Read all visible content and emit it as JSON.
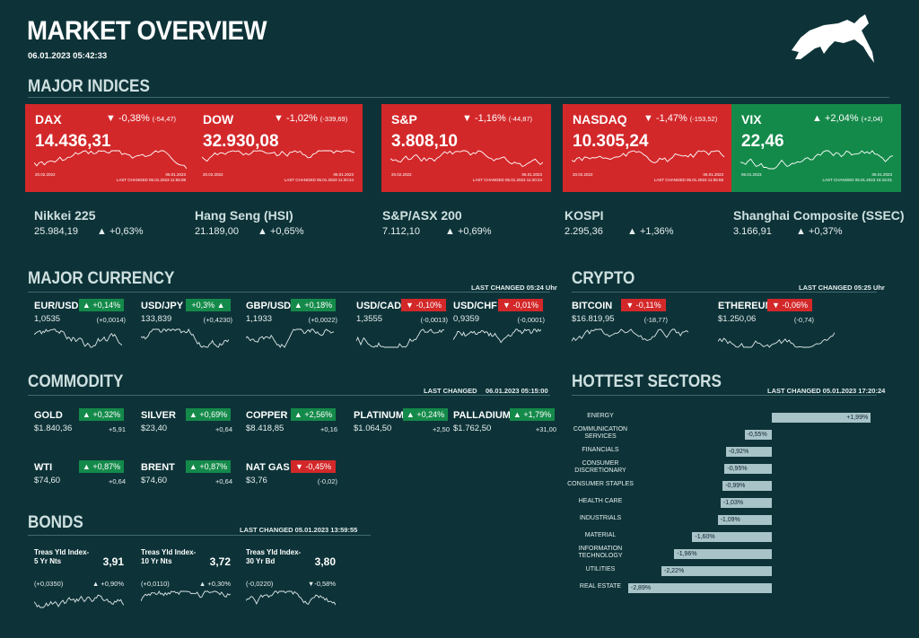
{
  "header": {
    "title": "MARKET OVERVIEW",
    "timestamp": "06.01.2023 05:42:33"
  },
  "sections": {
    "indices": "MAJOR INDICES",
    "currency": "MAJOR CURRENCY",
    "currency_changed": "LAST CHANGED 05:24 Uhr",
    "crypto": "CRYPTO",
    "crypto_changed": "LAST CHANGED 05:25 Uhr",
    "commodity": "COMMODITY",
    "commodity_changed_label": "LAST CHANGED",
    "commodity_changed_time": "06.01.2023 05:15:00",
    "sectors": "HOTTEST SECTORS",
    "sectors_changed": "LAST CHANGED 05.01.2023 17:20:24",
    "bonds": "BONDS",
    "bonds_changed": "LAST CHANGED 05.01.2023 13:59:55"
  },
  "cards": [
    {
      "name": "DAX",
      "change": "▼ -0,38%",
      "abs": "(-54,47)",
      "value": "14.436,31",
      "start": "20.02.2022",
      "end": "06.01.2023",
      "changed": "LAST CHANGED 05.01.2023 11:55:08",
      "color": "#d3282a"
    },
    {
      "name": "DOW",
      "change": "▼ -1,02%",
      "abs": "(-339,69)",
      "value": "32.930,08",
      "start": "20.02.2022",
      "end": "06.01.2023",
      "changed": "LAST CHANGED 05.01.2023 11:20:24",
      "color": "#d3282a"
    },
    {
      "name": "S&P",
      "change": "▼ -1,16%",
      "abs": "(-44,87)",
      "value": "3.808,10",
      "start": "20.02.2022",
      "end": "06.01.2023",
      "changed": "LAST CHANGED 05.01.2023 11:20:24",
      "color": "#d3282a"
    },
    {
      "name": "NASDAQ",
      "change": "▼ -1,47%",
      "abs": "(-153,52)",
      "value": "10.305,24",
      "start": "20.02.2022",
      "end": "06.01.2023",
      "changed": "LAST CHANGED 05.01.2023 11:55:58",
      "color": "#d3282a"
    },
    {
      "name": "VIX",
      "change": "▲ +2,04%",
      "abs": "(+2,04)",
      "value": "22,46",
      "start": "06.01.2023",
      "end": "06.01.2023",
      "changed": "LAST CHANGED 05.01.2023 15:15:01",
      "color": "#148a4a"
    }
  ],
  "indices": [
    {
      "name": "Nikkei 225",
      "value": "25.984,19",
      "change": "▲ +0,63%"
    },
    {
      "name": "Hang Seng (HSI)",
      "value": "21.189,00",
      "change": "▲ +0,65%"
    },
    {
      "name": "S&P/ASX 200",
      "value": "7.112,10",
      "change": "▲ +0,69%"
    },
    {
      "name": "KOSPI",
      "value": "2.295,36",
      "change": "▲ +1,36%"
    },
    {
      "name": "Shanghai Composite (SSEC)",
      "value": "3.166,91",
      "change": "▲ +0,37%"
    }
  ],
  "currencies": [
    {
      "sym": "EUR/USD",
      "badge": "▲ +0,14%",
      "price": "1,0535",
      "abs": "(+0,0014)",
      "up": true
    },
    {
      "sym": "USD/JPY",
      "badge": "+0,3% ▲",
      "price": "133,839",
      "abs": "(+0,4230)",
      "up": true
    },
    {
      "sym": "GBP/USD",
      "badge": "▲ +0,18%",
      "price": "1,1933",
      "abs": "(+0,0022)",
      "up": true
    },
    {
      "sym": "USD/CAD",
      "badge": "▼ -0,10%",
      "price": "1,3555",
      "abs": "(-0,0013)",
      "up": false
    },
    {
      "sym": "USD/CHF",
      "badge": "▼ -0,01%",
      "price": "0,9359",
      "abs": "(-0,0001)",
      "up": false
    }
  ],
  "crypto": [
    {
      "sym": "BITCOIN",
      "badge": "▼ -0,11%",
      "price": "$16.819,95",
      "abs": "(-18,77)",
      "up": false
    },
    {
      "sym": "ETHEREUM",
      "badge": "▼ -0,06%",
      "price": "$1.250,06",
      "abs": "(-0,74)",
      "up": false
    }
  ],
  "commodities": [
    {
      "sym": "GOLD",
      "badge": "▲ +0,32%",
      "price": "$1.840,36",
      "abs": "+5,91",
      "up": true
    },
    {
      "sym": "SILVER",
      "badge": "▲ +0,69%",
      "price": "$23,40",
      "abs": "+0,64",
      "up": true
    },
    {
      "sym": "COPPER",
      "badge": "▲ +2,56%",
      "price": "$8.418,85",
      "abs": "+0,16",
      "up": true
    },
    {
      "sym": "PLATINUM",
      "badge": "▲ +0,24%",
      "price": "$1.064,50",
      "abs": "+2,50",
      "up": true
    },
    {
      "sym": "PALLADIUM",
      "badge": "▲ +1,79%",
      "price": "$1.762,50",
      "abs": "+31,00",
      "up": true
    },
    {
      "sym": "WTI",
      "badge": "▲ +0,87%",
      "price": "$74,60",
      "abs": "+0,64",
      "up": true
    },
    {
      "sym": "BRENT",
      "badge": "▲ +0,87%",
      "price": "$74,60",
      "abs": "+0,64",
      "up": true
    },
    {
      "sym": "NAT GAS",
      "badge": "▼ -0,45%",
      "price": "$3,76",
      "abs": "(-0,02)",
      "up": false
    }
  ],
  "bonds": [
    {
      "name": "Treas Yld Index-5 Yr Nts",
      "value": "3,91",
      "abs": "(+0,0350)",
      "change": "▲ +0,90%"
    },
    {
      "name": "Treas Yld Index-10 Yr Nts",
      "value": "3,72",
      "abs": "(+0,0110)",
      "change": "▲ +0,30%"
    },
    {
      "name": "Treas Yld Index-30 Yr Bd",
      "value": "3,80",
      "abs": "(-0,0220)",
      "change": "▼-0,58%"
    }
  ],
  "sectors": [
    {
      "name": "ENERGY",
      "label": "+1,99%",
      "value": 1.99
    },
    {
      "name": "COMMUNICATION SERVICES",
      "label": "-0,55%",
      "value": -0.55
    },
    {
      "name": "FINANCIALS",
      "label": "-0,92%",
      "value": -0.92
    },
    {
      "name": "CONSUMER DISCRETIONARY",
      "label": "-0,95%",
      "value": -0.95
    },
    {
      "name": "CONSUMER STAPLES",
      "label": "-0,99%",
      "value": -0.99
    },
    {
      "name": "HEALTH CARE",
      "label": "-1,03%",
      "value": -1.03
    },
    {
      "name": "INDUSTRIALS",
      "label": "-1,09%",
      "value": -1.09
    },
    {
      "name": "MATERIAL",
      "label": "-1,60%",
      "value": -1.6
    },
    {
      "name": "INFORMATION TECHNOLOGY",
      "label": "-1,96%",
      "value": -1.96
    },
    {
      "name": "UTILITIES",
      "label": "-2,22%",
      "value": -2.22
    },
    {
      "name": "REAL ESTATE",
      "label": "-2,89%",
      "value": -2.89
    }
  ]
}
